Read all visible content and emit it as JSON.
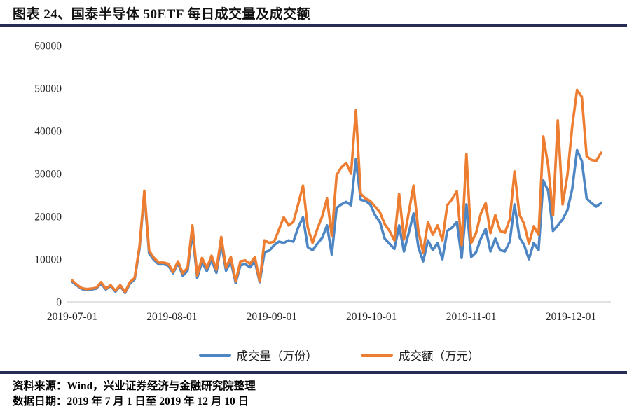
{
  "figure": {
    "title": "图表 24、国泰半导体 50ETF 每日成交量及成交额",
    "source_line": "资料来源：Wind，兴业证券经济与金融研究院整理",
    "date_line": "数据日期：2019 年 7 月 1 日至 2019 年 12 月 10 日"
  },
  "colors": {
    "volume_line": "#4e86c4",
    "turnover_line": "#ed7d31",
    "rule": "#272c55",
    "axis_line": "#d9d9d9",
    "tick_text": "#262626"
  },
  "chart_data": {
    "type": "line",
    "title": "",
    "xlabel": "",
    "ylabel": "",
    "ylim": [
      0,
      60000
    ],
    "yticks": [
      0,
      10000,
      20000,
      30000,
      40000,
      50000,
      60000
    ],
    "xticks": [
      "2019-07-01",
      "2019-08-01",
      "2019-09-01",
      "2019-10-01",
      "2019-11-01",
      "2019-12-01"
    ],
    "grid": false,
    "legend_position": "bottom",
    "x": [
      "2019-07-01",
      "2019-07-02",
      "2019-07-03",
      "2019-07-04",
      "2019-07-05",
      "2019-07-08",
      "2019-07-09",
      "2019-07-10",
      "2019-07-11",
      "2019-07-12",
      "2019-07-15",
      "2019-07-16",
      "2019-07-17",
      "2019-07-18",
      "2019-07-19",
      "2019-07-22",
      "2019-07-23",
      "2019-07-24",
      "2019-07-25",
      "2019-07-26",
      "2019-07-29",
      "2019-07-30",
      "2019-07-31",
      "2019-08-01",
      "2019-08-02",
      "2019-08-05",
      "2019-08-06",
      "2019-08-07",
      "2019-08-08",
      "2019-08-09",
      "2019-08-12",
      "2019-08-13",
      "2019-08-14",
      "2019-08-15",
      "2019-08-16",
      "2019-08-19",
      "2019-08-20",
      "2019-08-21",
      "2019-08-22",
      "2019-08-23",
      "2019-08-26",
      "2019-08-27",
      "2019-08-28",
      "2019-08-29",
      "2019-08-30",
      "2019-09-02",
      "2019-09-03",
      "2019-09-04",
      "2019-09-05",
      "2019-09-06",
      "2019-09-09",
      "2019-09-10",
      "2019-09-11",
      "2019-09-12",
      "2019-09-16",
      "2019-09-17",
      "2019-09-18",
      "2019-09-19",
      "2019-09-20",
      "2019-09-23",
      "2019-09-24",
      "2019-09-25",
      "2019-09-26",
      "2019-09-27",
      "2019-09-30",
      "2019-10-08",
      "2019-10-09",
      "2019-10-10",
      "2019-10-11",
      "2019-10-14",
      "2019-10-15",
      "2019-10-16",
      "2019-10-17",
      "2019-10-18",
      "2019-10-21",
      "2019-10-22",
      "2019-10-23",
      "2019-10-24",
      "2019-10-25",
      "2019-10-28",
      "2019-10-29",
      "2019-10-30",
      "2019-10-31",
      "2019-11-01",
      "2019-11-04",
      "2019-11-05",
      "2019-11-06",
      "2019-11-07",
      "2019-11-08",
      "2019-11-11",
      "2019-11-12",
      "2019-11-13",
      "2019-11-14",
      "2019-11-15",
      "2019-11-18",
      "2019-11-19",
      "2019-11-20",
      "2019-11-21",
      "2019-11-22",
      "2019-11-25",
      "2019-11-26",
      "2019-11-27",
      "2019-11-28",
      "2019-11-29",
      "2019-12-02",
      "2019-12-03",
      "2019-12-04",
      "2019-12-05",
      "2019-12-06",
      "2019-12-09",
      "2019-12-10"
    ],
    "series": [
      {
        "name": "成交量（万份）",
        "color": "#4e86c4",
        "values": [
          4700,
          3800,
          3000,
          2800,
          2900,
          3100,
          4300,
          2900,
          3700,
          2400,
          3700,
          2100,
          4300,
          5300,
          12500,
          25500,
          11400,
          9800,
          8800,
          8800,
          8500,
          6700,
          9100,
          6100,
          7300,
          16300,
          5600,
          9400,
          7200,
          9800,
          6800,
          13800,
          7300,
          9500,
          4400,
          8600,
          8800,
          8100,
          9500,
          4600,
          11600,
          12000,
          13300,
          14100,
          13800,
          14400,
          14100,
          17400,
          19800,
          12800,
          12100,
          13600,
          15000,
          17900,
          11100,
          22000,
          22800,
          23400,
          22600,
          33400,
          23900,
          23600,
          22800,
          20300,
          18700,
          14800,
          13600,
          12400,
          17900,
          11800,
          16200,
          20700,
          12800,
          9500,
          14400,
          12100,
          13800,
          10000,
          16600,
          17400,
          18700,
          10300,
          22800,
          10500,
          11600,
          14800,
          17100,
          11800,
          14800,
          12100,
          11800,
          14100,
          22800,
          15200,
          13300,
          10000,
          13800,
          12100,
          28400,
          25900,
          16600,
          17900,
          19300,
          21500,
          26400,
          35500,
          33000,
          24200,
          23100,
          22300,
          23100
        ]
      },
      {
        "name": "成交额（万元）",
        "color": "#ed7d31",
        "values": [
          5000,
          4000,
          3200,
          3000,
          3100,
          3300,
          4600,
          3100,
          3900,
          2600,
          3900,
          2300,
          4600,
          5600,
          13000,
          26000,
          12000,
          10300,
          9200,
          9200,
          8900,
          7000,
          9500,
          6700,
          8000,
          17900,
          6200,
          10300,
          7900,
          10800,
          7500,
          15200,
          8000,
          10500,
          4800,
          9500,
          9700,
          8900,
          10500,
          4800,
          14400,
          13800,
          14100,
          16900,
          19800,
          17900,
          18700,
          22800,
          27200,
          17400,
          13800,
          17100,
          20000,
          24200,
          15400,
          29700,
          31500,
          32500,
          30000,
          44800,
          25300,
          24200,
          23600,
          22300,
          21000,
          18200,
          16600,
          14400,
          25300,
          14600,
          21000,
          27200,
          16600,
          11600,
          18700,
          15700,
          17900,
          14400,
          22600,
          24000,
          25900,
          13300,
          34600,
          13800,
          16100,
          20700,
          23100,
          16100,
          20300,
          16600,
          16200,
          19300,
          30500,
          20500,
          18200,
          13600,
          17700,
          15700,
          38700,
          31800,
          20300,
          42500,
          22800,
          29700,
          41000,
          49600,
          48000,
          34100,
          33200,
          33000,
          34900
        ]
      }
    ]
  }
}
